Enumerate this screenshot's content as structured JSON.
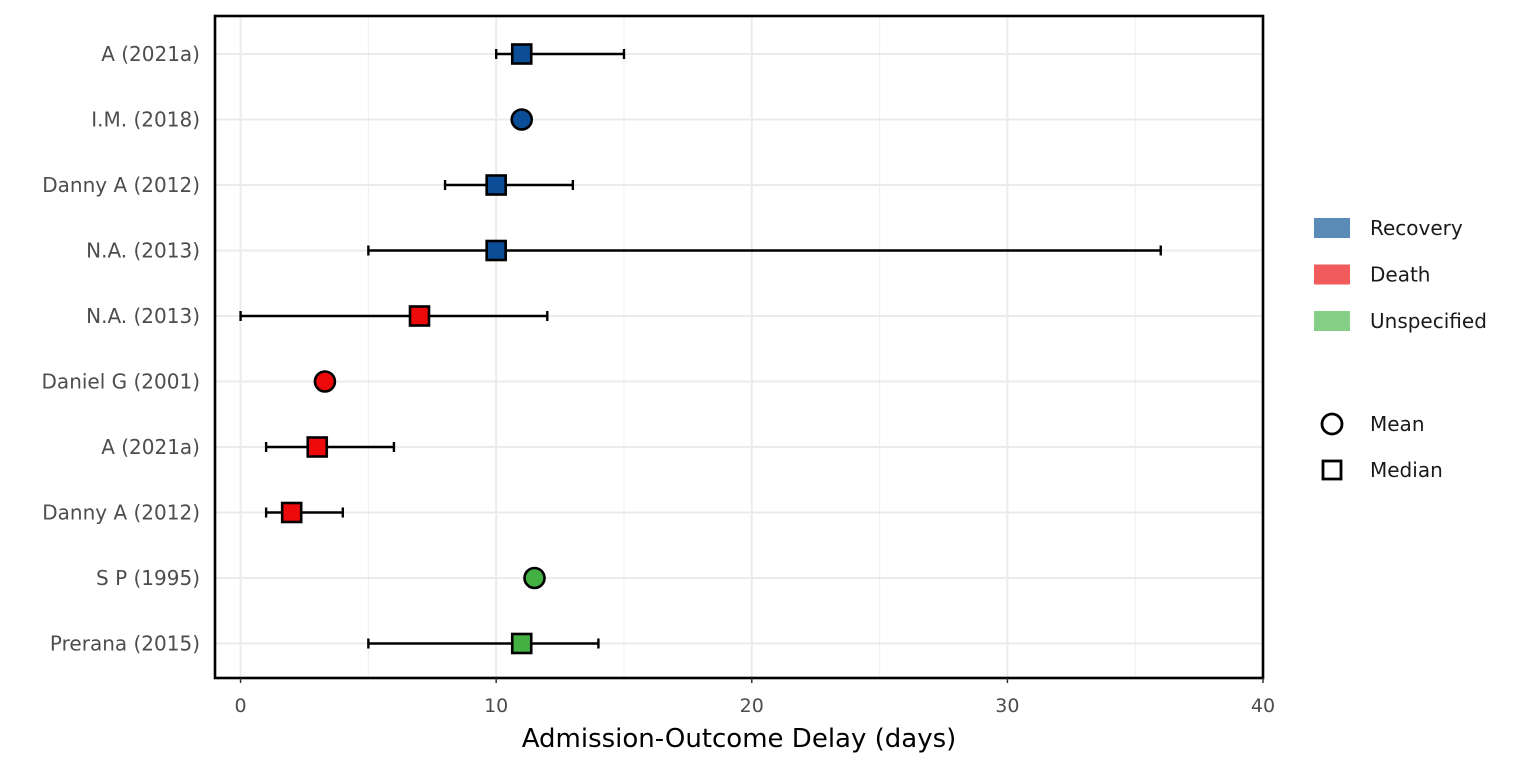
{
  "chart_data": {
    "type": "scatter",
    "xlabel": "Admission-Outcome Delay (days)",
    "ylabel": "",
    "xlim": [
      -1,
      40
    ],
    "xticks": [
      0,
      10,
      20,
      30,
      40
    ],
    "grid": true,
    "legend_position": "right",
    "colors": {
      "Recovery": "#0b4d96",
      "Death": "#ee0a0a",
      "Unspecified": "#43b043"
    },
    "legend_fill_colors": {
      "Recovery": "#5a8ab6",
      "Death": "#f25b5b",
      "Unspecified": "#85ce85"
    },
    "legend_outcome": [
      "Recovery",
      "Death",
      "Unspecified"
    ],
    "legend_stat": [
      "Mean",
      "Median"
    ],
    "rows": [
      {
        "label": "A (2021a)",
        "outcome": "Recovery",
        "stat": "Median",
        "value": 11,
        "low": 10,
        "high": 15
      },
      {
        "label": "I.M. (2018)",
        "outcome": "Recovery",
        "stat": "Mean",
        "value": 11,
        "low": null,
        "high": null
      },
      {
        "label": "Danny A (2012)",
        "outcome": "Recovery",
        "stat": "Median",
        "value": 10,
        "low": 8,
        "high": 13
      },
      {
        "label": "N.A. (2013)",
        "outcome": "Recovery",
        "stat": "Median",
        "value": 10,
        "low": 5,
        "high": 36
      },
      {
        "label": "N.A. (2013)",
        "outcome": "Death",
        "stat": "Median",
        "value": 7,
        "low": 0,
        "high": 12
      },
      {
        "label": "Daniel G (2001)",
        "outcome": "Death",
        "stat": "Mean",
        "value": 3.3,
        "low": null,
        "high": null
      },
      {
        "label": "A (2021a)",
        "outcome": "Death",
        "stat": "Median",
        "value": 3,
        "low": 1,
        "high": 6
      },
      {
        "label": "Danny A (2012)",
        "outcome": "Death",
        "stat": "Median",
        "value": 2,
        "low": 1,
        "high": 4
      },
      {
        "label": "S P (1995)",
        "outcome": "Unspecified",
        "stat": "Mean",
        "value": 11.5,
        "low": null,
        "high": null
      },
      {
        "label": "Prerana (2015)",
        "outcome": "Unspecified",
        "stat": "Median",
        "value": 11,
        "low": 5,
        "high": 14
      }
    ]
  }
}
